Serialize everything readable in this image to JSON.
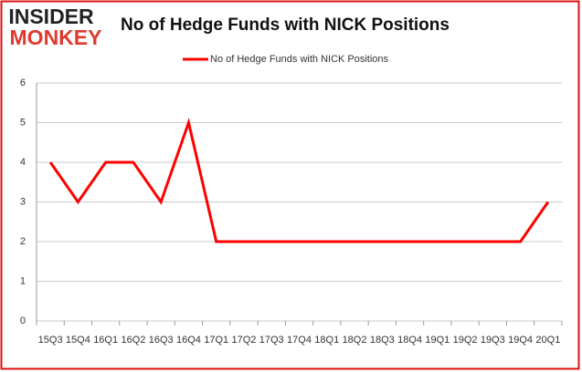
{
  "logo": {
    "top": "INSIDER",
    "bottom": "MONKEY"
  },
  "chart_data": {
    "type": "line",
    "title": "No of Hedge Funds with NICK Positions",
    "categories": [
      "15Q3",
      "15Q4",
      "16Q1",
      "16Q2",
      "16Q3",
      "16Q4",
      "17Q1",
      "17Q2",
      "17Q3",
      "17Q4",
      "18Q1",
      "18Q2",
      "18Q3",
      "18Q4",
      "19Q1",
      "19Q2",
      "19Q3",
      "19Q4",
      "20Q1"
    ],
    "series": [
      {
        "name": "No of Hedge Funds with NICK Positions",
        "color": "#ff0000",
        "values": [
          4,
          3,
          4,
          4,
          3,
          5,
          2,
          2,
          2,
          2,
          2,
          2,
          2,
          2,
          2,
          2,
          2,
          2,
          3
        ]
      }
    ],
    "ylim": [
      0,
      6
    ],
    "yticks": [
      0,
      1,
      2,
      3,
      4,
      5,
      6
    ],
    "grid": true,
    "legend": "top"
  }
}
